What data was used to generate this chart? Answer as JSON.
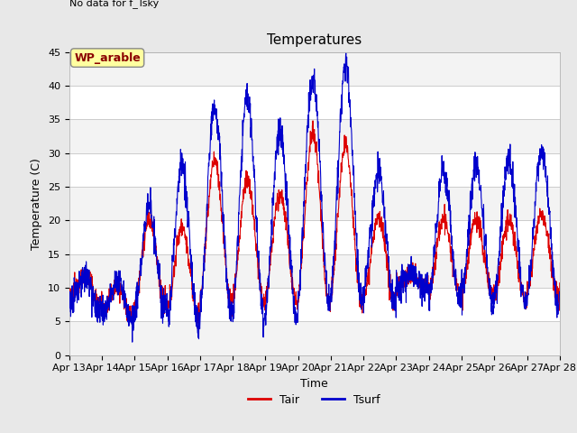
{
  "title": "Temperatures",
  "xlabel": "Time",
  "ylabel": "Temperature (C)",
  "ylim": [
    0,
    45
  ],
  "yticks": [
    0,
    5,
    10,
    15,
    20,
    25,
    30,
    35,
    40,
    45
  ],
  "annotation_text": "No data for f_Tsky\nNo data for f_Tsky",
  "wp_label": "WP_arable",
  "tair_color": "#dd0000",
  "tsurf_color": "#0000cc",
  "background_color": "#e8e8e8",
  "plot_bg_color": "#ffffff",
  "figsize": [
    6.4,
    4.8
  ],
  "dpi": 100,
  "legend_fontsize": 9,
  "tick_fontsize": 8,
  "title_fontsize": 11
}
